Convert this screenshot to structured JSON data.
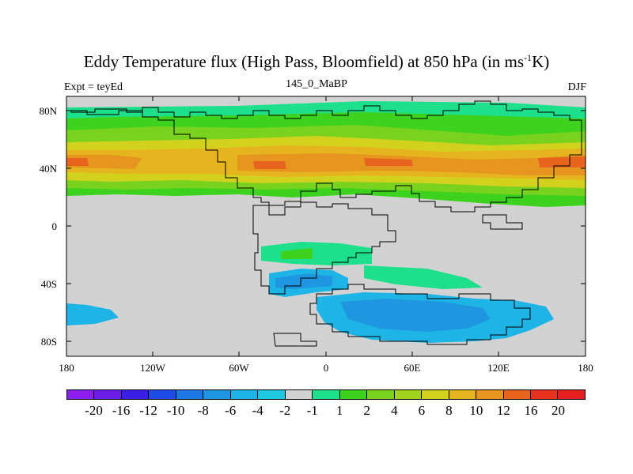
{
  "title": {
    "main": "Eddy Temperature flux (High Pass, Bloomfield) at 850 hPa (in ms",
    "sup": "-1",
    "tail": "K)"
  },
  "subtitle": {
    "left": "Expt = teyEd",
    "center": "145_0_MaBP",
    "right": "DJF"
  },
  "axes": {
    "lat_ticks": [
      "80N",
      "40N",
      "0",
      "40S",
      "80S"
    ],
    "lon_ticks": [
      "180",
      "120W",
      "60W",
      "0",
      "60E",
      "120E",
      "180"
    ]
  },
  "colorbar": {
    "colors": [
      "#8c1ef0",
      "#6a1ee8",
      "#3c1ee6",
      "#1e4ce6",
      "#1e78e6",
      "#1e96e0",
      "#1eb4e6",
      "#1ec8e0",
      "#d2d2d2",
      "#1ee08c",
      "#3cd21e",
      "#78d21e",
      "#a0d21e",
      "#d2d21e",
      "#e6b41e",
      "#e6961e",
      "#e6641e",
      "#e6321e",
      "#e61e1e"
    ],
    "labels": [
      "-20",
      "-16",
      "-12",
      "-10",
      "-8",
      "-6",
      "-4",
      "-2",
      "-1",
      "1",
      "2",
      "4",
      "6",
      "8",
      "10",
      "12",
      "16",
      "20"
    ]
  },
  "map_colors": {
    "background": "#d2d2d2",
    "coast": "#000000"
  }
}
